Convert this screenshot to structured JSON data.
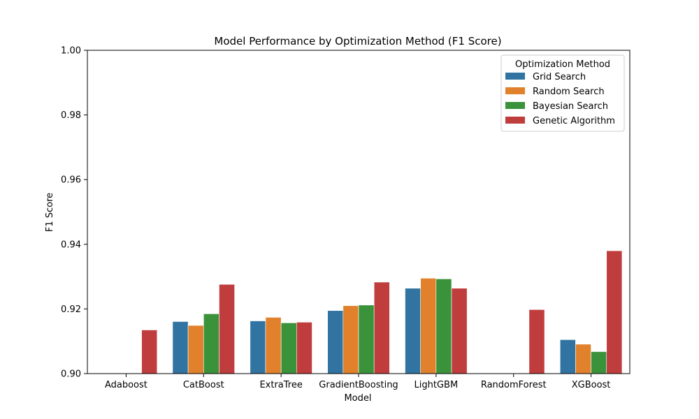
{
  "chart_data": {
    "type": "bar",
    "title": "Model Performance by Optimization Method (F1 Score)",
    "xlabel": "Model",
    "ylabel": "F1 Score",
    "ylim": [
      0.9,
      1.0
    ],
    "yticks": [
      "0.90",
      "0.92",
      "0.94",
      "0.96",
      "0.98",
      "1.00"
    ],
    "categories": [
      "Adaboost",
      "CatBoost",
      "ExtraTree",
      "GradientBoosting",
      "LightGBM",
      "RandomForest",
      "XGBoost"
    ],
    "legend": {
      "title": "Optimization Method",
      "placement": "top-right"
    },
    "series": [
      {
        "name": "Grid Search",
        "color": "#3274a1",
        "values": [
          0.9,
          0.9161,
          0.9163,
          0.9195,
          0.9264,
          0.9,
          0.9105
        ]
      },
      {
        "name": "Random Search",
        "color": "#e1812c",
        "values": [
          0.9,
          0.9149,
          0.9174,
          0.921,
          0.9295,
          0.9,
          0.9091
        ]
      },
      {
        "name": "Bayesian Search",
        "color": "#3a923a",
        "values": [
          0.9,
          0.9185,
          0.9157,
          0.9212,
          0.9293,
          0.9,
          0.9068
        ]
      },
      {
        "name": "Genetic Algorithm",
        "color": "#c03d3e",
        "values": [
          0.9135,
          0.9276,
          0.9159,
          0.9283,
          0.9264,
          0.9198,
          0.938
        ]
      }
    ]
  }
}
